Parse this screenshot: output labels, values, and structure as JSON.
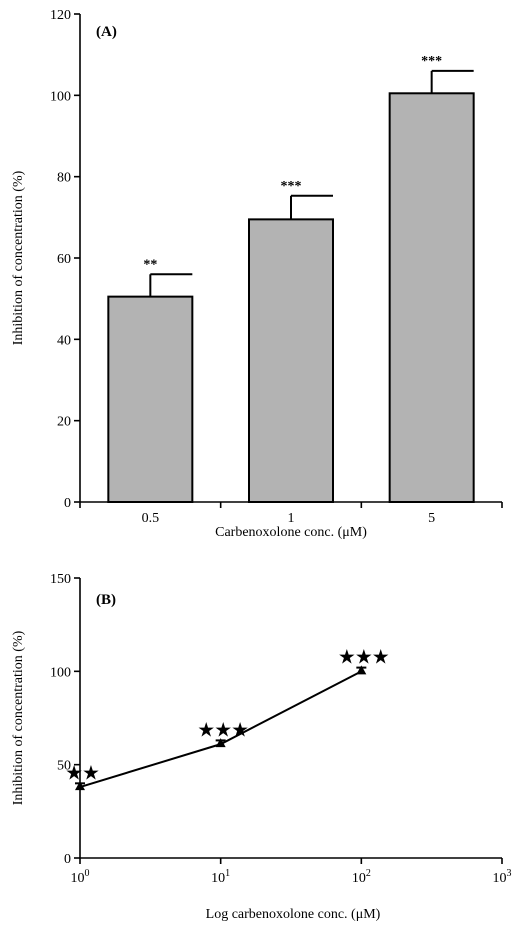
{
  "chart_data": [
    {
      "type": "bar",
      "panel_label": "(A)",
      "categories": [
        "0.5",
        "1",
        "5"
      ],
      "values": [
        50.5,
        69.5,
        100.5
      ],
      "errors": [
        5.5,
        5.8,
        5.5
      ],
      "significance": [
        "**",
        "***",
        "***"
      ],
      "xlabel": "Carbenoxolone conc. (μM)",
      "ylabel": "Inhibition of concentration (%)",
      "ylim": [
        0,
        120
      ],
      "yticks": [
        "0",
        "20",
        "40",
        "60",
        "80",
        "100",
        "120"
      ],
      "bar_color": "#b3b3b3",
      "grid": false
    },
    {
      "type": "line",
      "panel_label": "(B)",
      "xscale": "log",
      "x": [
        1,
        10,
        100
      ],
      "y": [
        38,
        61,
        100
      ],
      "errors": [
        2,
        2,
        2
      ],
      "significance": [
        "★★",
        "★★★",
        "★★★"
      ],
      "xlabel": "Log carbenoxolone conc. (μM)",
      "ylabel": "Inhibition of concentration (%)",
      "xlim": [
        1,
        1000
      ],
      "ylim": [
        0,
        150
      ],
      "yticks": [
        "0",
        "50",
        "100",
        "150"
      ],
      "xticks": [
        {
          "base": "10",
          "exp": "0"
        },
        {
          "base": "10",
          "exp": "1"
        },
        {
          "base": "10",
          "exp": "2"
        },
        {
          "base": "10",
          "exp": "3"
        }
      ],
      "grid": false
    }
  ]
}
